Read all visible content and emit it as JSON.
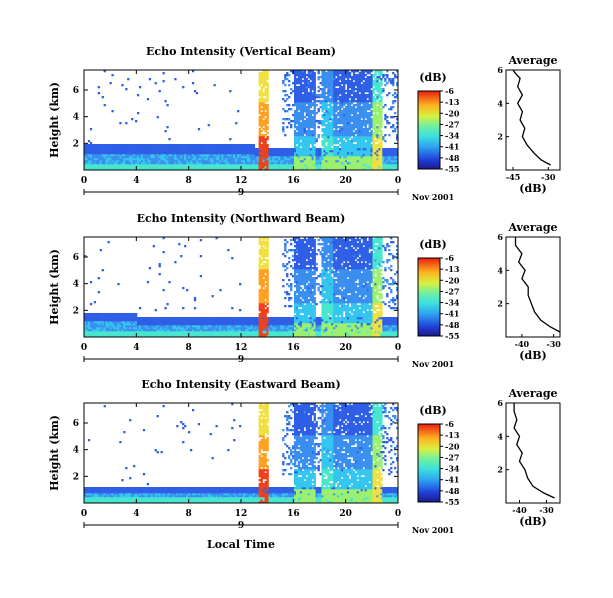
{
  "common": {
    "xlabel": "Local Time",
    "ylabel": "Height (km)",
    "day_label": "9",
    "month_label": "Nov 2001",
    "colorbar_unit": "(dB)",
    "avg_title": "Average",
    "avg_xlabel": "(dB)",
    "colorbar_ticks": [
      "-6",
      "-13",
      "-20",
      "-27",
      "-34",
      "-41",
      "-48",
      "-55"
    ],
    "x_ticks": [
      "0",
      "4",
      "8",
      "12",
      "16",
      "20",
      "0"
    ],
    "y_ticks": [
      "6",
      "4",
      "2"
    ],
    "colors": {
      "very_low": "#1e32c8",
      "low": "#3c78f0",
      "mid_low": "#2db4f0",
      "mid": "#46e6d2",
      "mid_high": "#b4f050",
      "high": "#ffd21e",
      "very_high": "#f03c14"
    }
  },
  "chart_data": [
    {
      "type": "heatmap",
      "title": "Echo Intensity (Vertical Beam)",
      "xlabel": "Local Time",
      "ylabel": "Height (km)",
      "xlim": [
        0,
        24
      ],
      "ylim": [
        0,
        7.5
      ],
      "colorbar_range_db": [
        -55,
        -6
      ],
      "average_profile": {
        "title": "Average",
        "xlabel": "(dB)",
        "x_ticks": [
          "-45",
          "-30"
        ],
        "y_ticks": [
          "6",
          "4",
          "2"
        ],
        "xlim": [
          -48,
          -25
        ],
        "ylim": [
          0,
          6
        ],
        "points": [
          [
            -29,
            0.3
          ],
          [
            -33,
            0.6
          ],
          [
            -36,
            1.0
          ],
          [
            -39,
            1.5
          ],
          [
            -41,
            2.0
          ],
          [
            -40,
            2.5
          ],
          [
            -42,
            3.0
          ],
          [
            -41,
            3.5
          ],
          [
            -43,
            4.0
          ],
          [
            -41,
            4.5
          ],
          [
            -43,
            5.0
          ],
          [
            -42,
            5.5
          ],
          [
            -44,
            5.8
          ],
          [
            -45,
            6.0
          ]
        ]
      }
    },
    {
      "type": "heatmap",
      "title": "Echo Intensity (Northward Beam)",
      "xlabel": "Local Time",
      "ylabel": "Height (km)",
      "xlim": [
        0,
        24
      ],
      "ylim": [
        0,
        7.5
      ],
      "colorbar_range_db": [
        -55,
        -6
      ],
      "average_profile": {
        "title": "Average",
        "xlabel": "(dB)",
        "x_ticks": [
          "-40",
          "-30"
        ],
        "y_ticks": [
          "6",
          "4",
          "2"
        ],
        "xlim": [
          -45,
          -28
        ],
        "ylim": [
          0,
          6
        ],
        "points": [
          [
            -28,
            0.3
          ],
          [
            -31,
            0.6
          ],
          [
            -34,
            1.0
          ],
          [
            -36,
            1.5
          ],
          [
            -37,
            2.0
          ],
          [
            -38,
            2.5
          ],
          [
            -38,
            3.0
          ],
          [
            -40,
            3.5
          ],
          [
            -39,
            4.0
          ],
          [
            -41,
            4.5
          ],
          [
            -40,
            5.0
          ],
          [
            -42,
            5.5
          ],
          [
            -42,
            6.0
          ]
        ]
      }
    },
    {
      "type": "heatmap",
      "title": "Echo Intensity (Eastward Beam)",
      "xlabel": "Local Time",
      "ylabel": "Height (km)",
      "xlim": [
        0,
        24
      ],
      "ylim": [
        0,
        7.5
      ],
      "colorbar_range_db": [
        -55,
        -6
      ],
      "average_profile": {
        "title": "Average",
        "xlabel": "(dB)",
        "x_ticks": [
          "-40",
          "-30"
        ],
        "y_ticks": [
          "6",
          "4",
          "2"
        ],
        "xlim": [
          -45,
          -25
        ],
        "ylim": [
          0,
          6
        ],
        "points": [
          [
            -27,
            0.3
          ],
          [
            -31,
            0.6
          ],
          [
            -35,
            1.0
          ],
          [
            -37,
            1.5
          ],
          [
            -38,
            2.0
          ],
          [
            -40,
            2.5
          ],
          [
            -39,
            3.0
          ],
          [
            -41,
            3.5
          ],
          [
            -40,
            4.0
          ],
          [
            -42,
            4.5
          ],
          [
            -41,
            5.0
          ],
          [
            -42,
            5.5
          ],
          [
            -42,
            6.0
          ]
        ]
      }
    }
  ]
}
